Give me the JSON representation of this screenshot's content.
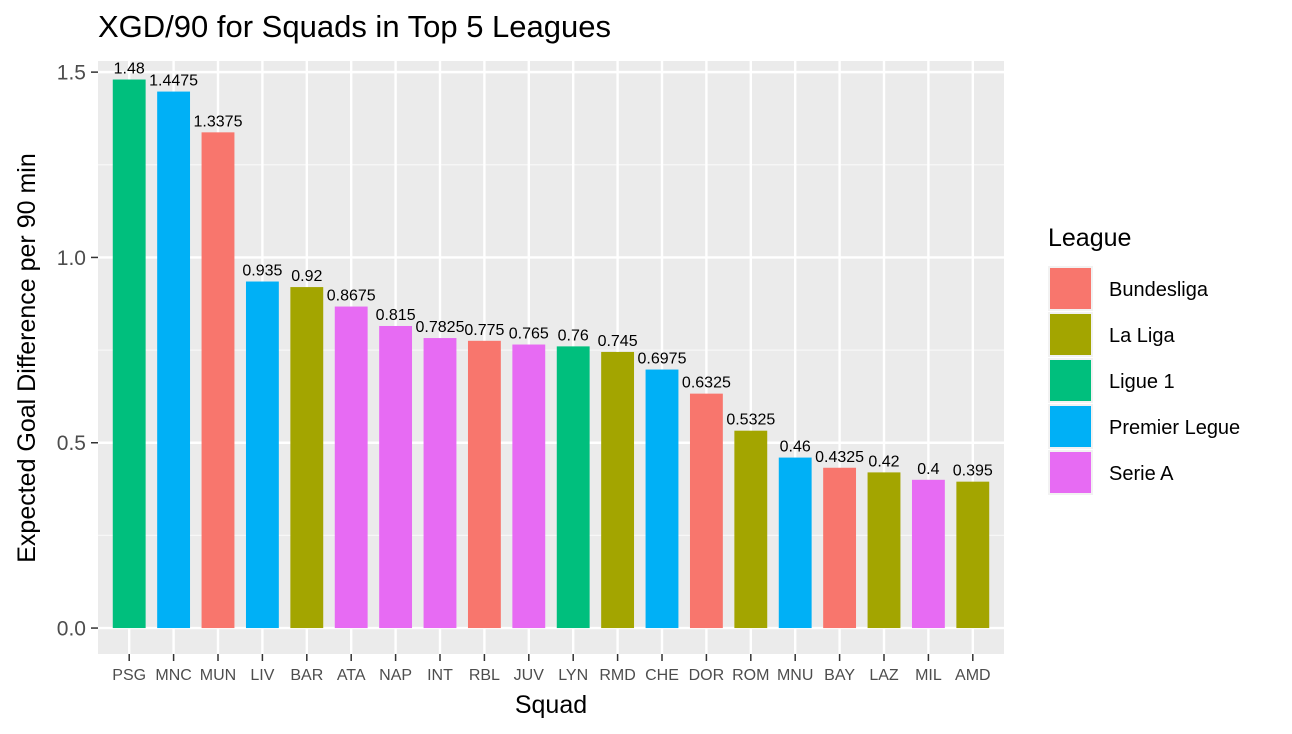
{
  "chart_data": {
    "type": "bar",
    "title": "XGD/90 for Squads in Top 5 Leagues",
    "xlabel": "Squad",
    "ylabel": "Expected Goal Difference per 90 min",
    "ylim": [
      -0.07,
      1.53
    ],
    "yticks": [
      "0.0",
      "0.5",
      "1.0",
      "1.5"
    ],
    "grid": true,
    "legend": {
      "title": "League",
      "placement": "right",
      "entries": [
        {
          "name": "Bundesliga",
          "color": "#F8766D"
        },
        {
          "name": "La Liga",
          "color": "#A3A500"
        },
        {
          "name": "Ligue 1",
          "color": "#00BF7D"
        },
        {
          "name": "Premier Legue",
          "color": "#00B0F6"
        },
        {
          "name": "Serie A",
          "color": "#E76BF3"
        }
      ]
    },
    "categories": [
      "PSG",
      "MNC",
      "MUN",
      "LIV",
      "BAR",
      "ATA",
      "NAP",
      "INT",
      "RBL",
      "JUV",
      "LYN",
      "RMD",
      "CHE",
      "DOR",
      "ROM",
      "MNU",
      "BAY",
      "LAZ",
      "MIL",
      "AMD"
    ],
    "values": [
      1.48,
      1.4475,
      1.3375,
      0.935,
      0.92,
      0.8675,
      0.815,
      0.7825,
      0.775,
      0.765,
      0.76,
      0.745,
      0.6975,
      0.6325,
      0.5325,
      0.46,
      0.4325,
      0.42,
      0.4,
      0.395
    ],
    "value_labels": [
      "1.48",
      "1.4475",
      "1.3375",
      "0.935",
      "0.92",
      "0.8675",
      "0.815",
      "0.7825",
      "0.775",
      "0.765",
      "0.76",
      "0.745",
      "0.6975",
      "0.6325",
      "0.5325",
      "0.46",
      "0.4325",
      "0.42",
      "0.4",
      "0.395"
    ],
    "leagues": [
      "Ligue 1",
      "Premier Legue",
      "Bundesliga",
      "Premier Legue",
      "La Liga",
      "Serie A",
      "Serie A",
      "Serie A",
      "Bundesliga",
      "Serie A",
      "Ligue 1",
      "La Liga",
      "Premier Legue",
      "Bundesliga",
      "La Liga",
      "Premier Legue",
      "Bundesliga",
      "La Liga",
      "Serie A",
      "La Liga"
    ]
  }
}
